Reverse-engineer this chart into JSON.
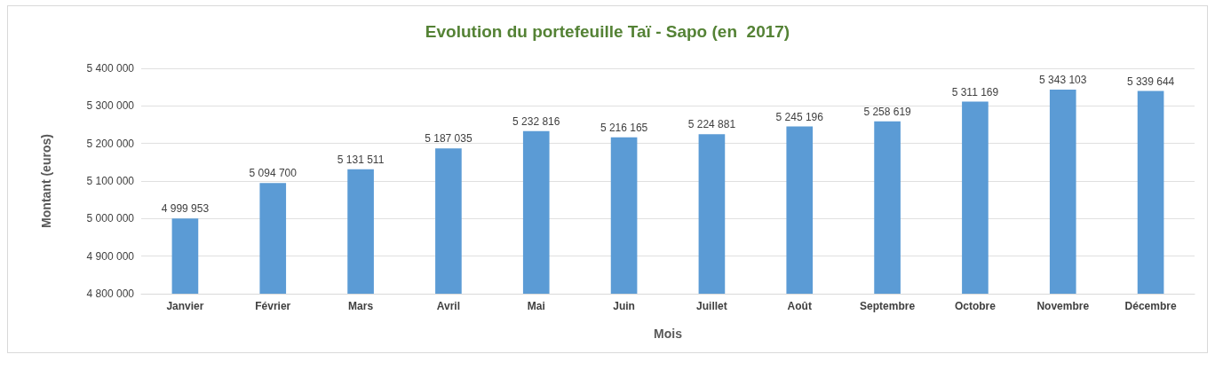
{
  "chart_data": {
    "type": "bar",
    "title": "Evolution du portefeuille Taï - Sapo (en  2017)",
    "xlabel": "Mois",
    "ylabel": "Montant (euros)",
    "categories": [
      "Janvier",
      "Février",
      "Mars",
      "Avril",
      "Mai",
      "Juin",
      "Juillet",
      "Août",
      "Septembre",
      "Octobre",
      "Novembre",
      "Décembre"
    ],
    "values": [
      4999953,
      5094700,
      5131511,
      5187035,
      5232816,
      5216165,
      5224881,
      5245196,
      5258619,
      5311169,
      5343103,
      5339644
    ],
    "value_labels": [
      "4 999 953",
      "5 094 700",
      "5 131 511",
      "5 187 035",
      "5 232 816",
      "5 216 165",
      "5 224 881",
      "5 245 196",
      "5 258 619",
      "5 311 169",
      "5 343 103",
      "5 339 644"
    ],
    "color": "#5b9bd5",
    "ylim": [
      4800000,
      5400000
    ],
    "yticks": [
      {
        "value": 4800000,
        "label": "4 800 000"
      },
      {
        "value": 4900000,
        "label": "4 900 000"
      },
      {
        "value": 5000000,
        "label": "5 000 000"
      },
      {
        "value": 5100000,
        "label": "5 100 000"
      },
      {
        "value": 5200000,
        "label": "5 200 000"
      },
      {
        "value": 5300000,
        "label": "5 300 000"
      },
      {
        "value": 5400000,
        "label": "5 400 000"
      }
    ],
    "grid": true
  }
}
